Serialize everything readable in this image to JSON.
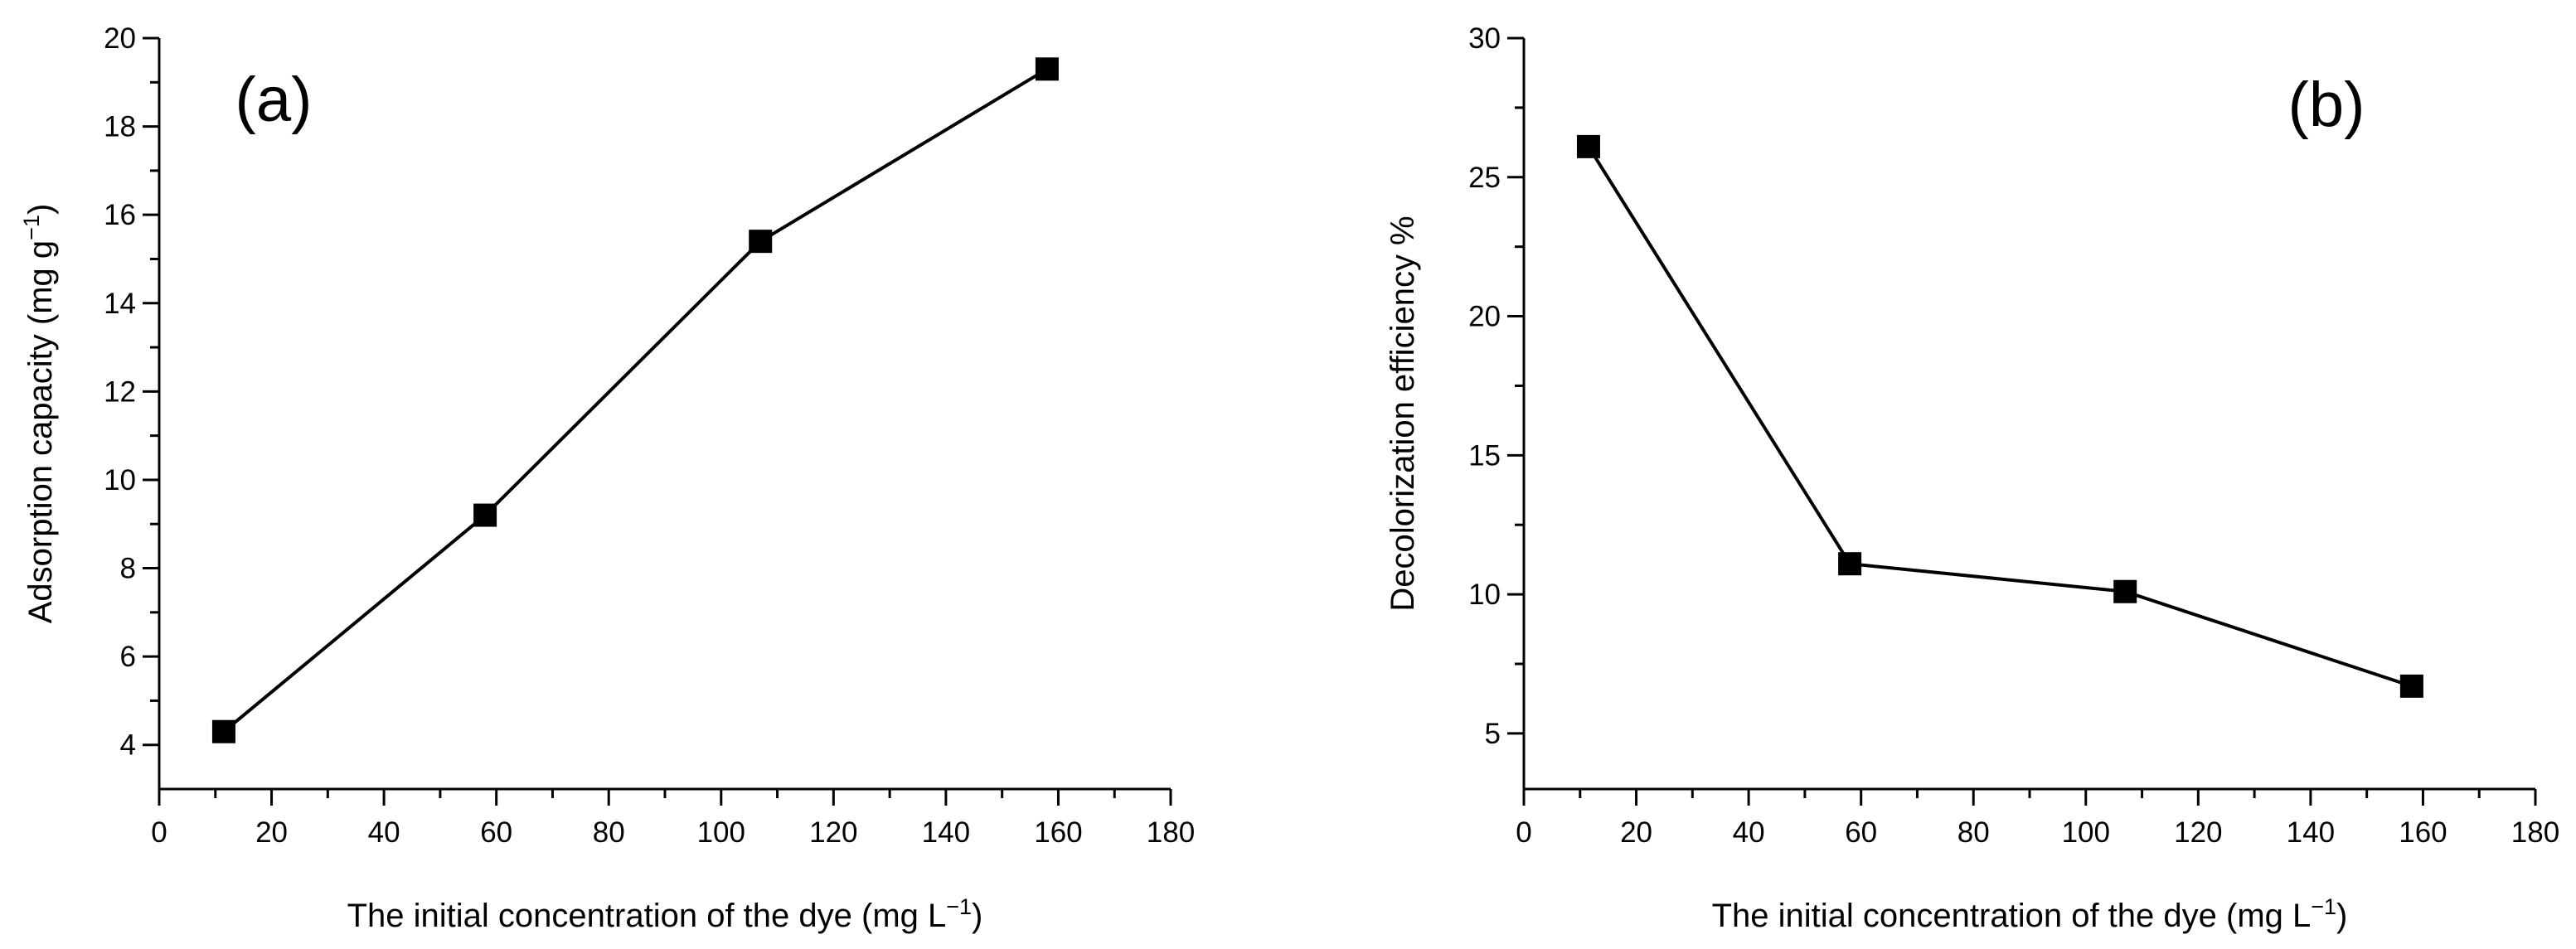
{
  "chart_data": [
    {
      "type": "line",
      "panel_label": "(a)",
      "markers": "square",
      "x": [
        11.5,
        58,
        107,
        158
      ],
      "y": [
        4.3,
        9.2,
        15.4,
        19.3
      ],
      "xlim": [
        0,
        180
      ],
      "ylim": [
        3,
        20
      ],
      "xticks": [
        0,
        20,
        40,
        60,
        80,
        100,
        120,
        140,
        160,
        180
      ],
      "yticks": [
        4,
        6,
        8,
        10,
        12,
        14,
        16,
        18,
        20
      ],
      "xlabel": {
        "main": "The initial concentration of the dye (mg L",
        "sup": "−1",
        "close": ")"
      },
      "ylabel": {
        "main": "Adsorption capacity (mg g",
        "sup": "−1",
        "close": ")"
      },
      "grid": false
    },
    {
      "type": "line",
      "panel_label": "(b)",
      "markers": "square",
      "x": [
        11.5,
        58,
        107,
        158
      ],
      "y": [
        26.1,
        11.1,
        10.1,
        6.7
      ],
      "xlim": [
        0,
        180
      ],
      "ylim": [
        3,
        30
      ],
      "xticks": [
        0,
        20,
        40,
        60,
        80,
        100,
        120,
        140,
        160,
        180
      ],
      "yticks": [
        5,
        10,
        15,
        20,
        25,
        30
      ],
      "xlabel": {
        "main": "The initial concentration of the dye (mg L",
        "sup": "−1",
        "close": ")"
      },
      "ylabel": {
        "main": "Decolorization efficiency %"
      },
      "grid": false
    }
  ]
}
